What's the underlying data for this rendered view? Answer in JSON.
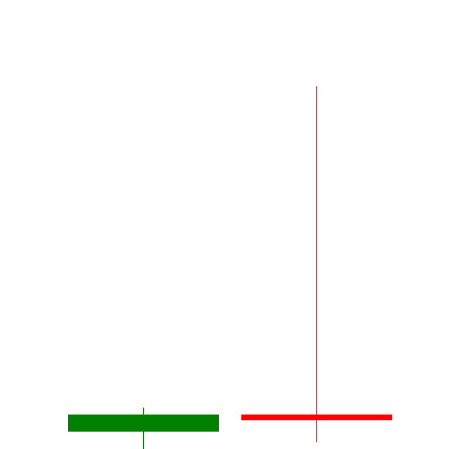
{
  "chart_data": {
    "type": "candlestick",
    "title": "",
    "xlabel": "",
    "ylabel": "",
    "axes_visible": false,
    "grid": false,
    "colors": {
      "up": "#008000",
      "down": "#ff0000",
      "background": "#ffffff"
    },
    "ylim": [
      -5,
      125
    ],
    "candles": [
      {
        "open": 0,
        "high": 7,
        "low": -7,
        "close": 5,
        "direction": "up"
      },
      {
        "open": 5,
        "high": 100,
        "low": -3,
        "close": 3.3,
        "direction": "down"
      }
    ]
  }
}
